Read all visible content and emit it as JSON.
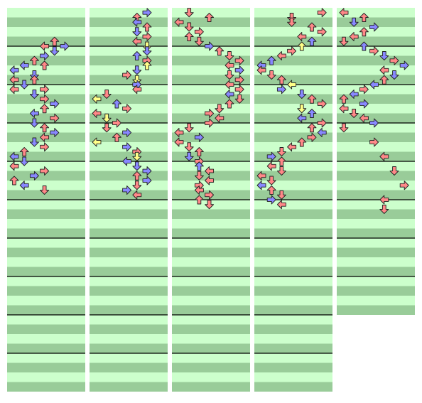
{
  "chart": {
    "columns": [
      {
        "name": "column-1",
        "measures": 10,
        "notes": [
          [
            3,
            4,
            "u",
            "r"
          ],
          [
            3.5,
            5,
            "r",
            "b"
          ],
          [
            3.5,
            3,
            "l",
            "r"
          ],
          [
            4,
            4,
            "d",
            "b"
          ],
          [
            4.5,
            3,
            "r",
            "b"
          ],
          [
            5,
            2,
            "u",
            "r"
          ],
          [
            5.5,
            1,
            "l",
            "b"
          ],
          [
            5.5,
            3,
            "u",
            "r"
          ],
          [
            6,
            0,
            "l",
            "b"
          ],
          [
            6.5,
            2,
            "d",
            "b"
          ],
          [
            7,
            0,
            "l",
            "r"
          ],
          [
            7,
            2,
            "u",
            "r"
          ],
          [
            7.5,
            1,
            "d",
            "b"
          ],
          [
            8,
            0,
            "l",
            "r"
          ],
          [
            8,
            3,
            "r",
            "r"
          ],
          [
            8.5,
            2,
            "d",
            "b"
          ],
          [
            9,
            3,
            "r",
            "r"
          ],
          [
            9.5,
            4,
            "r",
            "b"
          ],
          [
            10,
            3,
            "u",
            "r"
          ],
          [
            10.5,
            2,
            "l",
            "b"
          ],
          [
            11,
            4,
            "r",
            "r"
          ],
          [
            11.5,
            2,
            "d",
            "b"
          ],
          [
            12,
            3,
            "u",
            "r"
          ],
          [
            12.5,
            4,
            "r",
            "b"
          ],
          [
            13,
            3,
            "l",
            "r"
          ],
          [
            13.5,
            2,
            "d",
            "b"
          ],
          [
            14,
            3,
            "r",
            "r"
          ],
          [
            14.5,
            1,
            "u",
            "r"
          ],
          [
            15,
            0,
            "l",
            "b"
          ],
          [
            15.5,
            1,
            "d",
            "b"
          ],
          [
            16,
            0,
            "l",
            "r"
          ],
          [
            16.5,
            3,
            "r",
            "r"
          ],
          [
            17,
            2,
            "r",
            "b"
          ],
          [
            17.5,
            0,
            "u",
            "r"
          ],
          [
            18,
            1,
            "l",
            "b"
          ],
          [
            18.5,
            3,
            "d",
            "r"
          ]
        ]
      },
      {
        "name": "column-2",
        "measures": 10,
        "notes": [
          [
            0,
            5,
            "r",
            "b"
          ],
          [
            0.5,
            4,
            "u",
            "r"
          ],
          [
            1,
            4,
            "l",
            "b"
          ],
          [
            1.5,
            5,
            "u",
            "r"
          ],
          [
            2,
            4,
            "d",
            "b"
          ],
          [
            2.5,
            5,
            "r",
            "r"
          ],
          [
            3,
            4,
            "l",
            "r"
          ],
          [
            3.5,
            5,
            "d",
            "y"
          ],
          [
            4,
            5,
            "d",
            "b"
          ],
          [
            4.5,
            4,
            "u",
            "b"
          ],
          [
            5,
            5,
            "r",
            "r"
          ],
          [
            5.5,
            5,
            "u",
            "y"
          ],
          [
            6,
            4,
            "d",
            "b"
          ],
          [
            6.5,
            3,
            "r",
            "r"
          ],
          [
            7,
            4,
            "d",
            "y"
          ],
          [
            7.5,
            4,
            "r",
            "b"
          ],
          [
            8,
            4,
            "l",
            "r"
          ],
          [
            8.5,
            1,
            "d",
            "r"
          ],
          [
            9,
            0,
            "l",
            "y"
          ],
          [
            9.5,
            2,
            "u",
            "b"
          ],
          [
            10,
            3,
            "r",
            "r"
          ],
          [
            10.5,
            0,
            "l",
            "r"
          ],
          [
            11,
            1,
            "d",
            "y"
          ],
          [
            11.5,
            2,
            "r",
            "r"
          ],
          [
            12,
            1,
            "d",
            "r"
          ],
          [
            12.5,
            3,
            "r",
            "b"
          ],
          [
            13,
            2,
            "u",
            "r"
          ],
          [
            13.5,
            0,
            "l",
            "y"
          ],
          [
            14,
            3,
            "r",
            "b"
          ],
          [
            14.5,
            4,
            "r",
            "r"
          ],
          [
            15,
            4,
            "d",
            "y"
          ],
          [
            15.5,
            3,
            "l",
            "b"
          ],
          [
            16,
            4,
            "d",
            "b"
          ],
          [
            16.5,
            5,
            "r",
            "b"
          ],
          [
            17,
            4,
            "u",
            "r"
          ],
          [
            17.5,
            5,
            "r",
            "b"
          ],
          [
            18,
            4,
            "d",
            "r"
          ],
          [
            18.5,
            3,
            "r",
            "b"
          ],
          [
            19,
            4,
            "l",
            "r"
          ]
        ]
      },
      {
        "name": "column-3",
        "measures": 10,
        "notes": [
          [
            0,
            1,
            "d",
            "r"
          ],
          [
            0.5,
            3,
            "u",
            "r"
          ],
          [
            1,
            0,
            "l",
            "r"
          ],
          [
            1.5,
            1,
            "d",
            "r"
          ],
          [
            2,
            2,
            "r",
            "r"
          ],
          [
            2.5,
            1,
            "u",
            "r"
          ],
          [
            3,
            2,
            "d",
            "r"
          ],
          [
            3.5,
            3,
            "r",
            "b"
          ],
          [
            4,
            4,
            "u",
            "r"
          ],
          [
            4.5,
            5,
            "d",
            "r"
          ],
          [
            5,
            6,
            "r",
            "r"
          ],
          [
            5.5,
            5,
            "l",
            "r"
          ],
          [
            6,
            6,
            "r",
            "b"
          ],
          [
            6.5,
            5,
            "d",
            "r"
          ],
          [
            7,
            6,
            "r",
            "r"
          ],
          [
            7.5,
            5,
            "l",
            "r"
          ],
          [
            8,
            6,
            "r",
            "r"
          ],
          [
            8.5,
            5,
            "l",
            "b"
          ],
          [
            9,
            6,
            "d",
            "r"
          ],
          [
            9.5,
            5,
            "u",
            "r"
          ],
          [
            10,
            4,
            "d",
            "r"
          ],
          [
            10.5,
            3,
            "r",
            "r"
          ],
          [
            11,
            4,
            "l",
            "r"
          ],
          [
            11.5,
            3,
            "r",
            "r"
          ],
          [
            12,
            1,
            "d",
            "r"
          ],
          [
            12.5,
            0,
            "l",
            "r"
          ],
          [
            13,
            2,
            "r",
            "b"
          ],
          [
            13.5,
            0,
            "l",
            "r"
          ],
          [
            14,
            1,
            "d",
            "r"
          ],
          [
            14.5,
            2,
            "u",
            "r"
          ],
          [
            15,
            1,
            "d",
            "b"
          ],
          [
            15.5,
            2,
            "r",
            "r"
          ],
          [
            16,
            2,
            "u",
            "b"
          ],
          [
            16.5,
            3,
            "l",
            "r"
          ],
          [
            17,
            2,
            "d",
            "r"
          ],
          [
            17.5,
            3,
            "l",
            "r"
          ],
          [
            18,
            2,
            "r",
            "r"
          ],
          [
            18.5,
            2,
            "l",
            "r"
          ],
          [
            19,
            3,
            "r",
            "r"
          ],
          [
            19.5,
            2,
            "u",
            "r"
          ],
          [
            20,
            3,
            "d",
            "r"
          ]
        ]
      },
      {
        "name": "column-4",
        "measures": 10,
        "notes": [
          [
            0,
            6,
            "r",
            "r"
          ],
          [
            0.5,
            3,
            "d",
            "r"
          ],
          [
            1,
            3,
            "d",
            "r"
          ],
          [
            1.5,
            5,
            "u",
            "r"
          ],
          [
            2,
            6,
            "r",
            "r"
          ],
          [
            2.5,
            4,
            "l",
            "r"
          ],
          [
            3,
            5,
            "u",
            "b"
          ],
          [
            3.5,
            4,
            "u",
            "y"
          ],
          [
            4,
            3,
            "r",
            "r"
          ],
          [
            4.5,
            2,
            "l",
            "r"
          ],
          [
            5,
            1,
            "u",
            "b"
          ],
          [
            5.5,
            0,
            "l",
            "b"
          ],
          [
            6,
            0,
            "l",
            "r"
          ],
          [
            6.5,
            1,
            "d",
            "r"
          ],
          [
            7,
            2,
            "u",
            "r"
          ],
          [
            7.5,
            3,
            "l",
            "y"
          ],
          [
            8,
            2,
            "r",
            "b"
          ],
          [
            8.5,
            4,
            "d",
            "b"
          ],
          [
            9,
            5,
            "u",
            "r"
          ],
          [
            9.5,
            6,
            "r",
            "r"
          ],
          [
            10,
            4,
            "d",
            "y"
          ],
          [
            10.5,
            5,
            "u",
            "b"
          ],
          [
            11,
            4,
            "l",
            "b"
          ],
          [
            11.5,
            6,
            "r",
            "r"
          ],
          [
            12,
            5,
            "u",
            "r"
          ],
          [
            12.5,
            6,
            "l",
            "b"
          ],
          [
            13,
            5,
            "r",
            "r"
          ],
          [
            13.5,
            4,
            "u",
            "r"
          ],
          [
            14,
            3,
            "l",
            "r"
          ],
          [
            14.5,
            2,
            "d",
            "r"
          ],
          [
            15,
            1,
            "r",
            "b"
          ],
          [
            15.5,
            2,
            "u",
            "r"
          ],
          [
            16,
            1,
            "l",
            "r"
          ],
          [
            16.5,
            2,
            "d",
            "r"
          ],
          [
            17,
            0,
            "l",
            "r"
          ],
          [
            17.5,
            1,
            "d",
            "r"
          ],
          [
            18,
            0,
            "l",
            "b"
          ],
          [
            18.5,
            1,
            "u",
            "r"
          ],
          [
            19,
            2,
            "d",
            "r"
          ],
          [
            19.5,
            1,
            "r",
            "b"
          ],
          [
            20,
            2,
            "l",
            "r"
          ]
        ]
      },
      {
        "name": "column-5",
        "measures": 8,
        "notes": [
          [
            0,
            0,
            "l",
            "r"
          ],
          [
            0.5,
            2,
            "u",
            "r"
          ],
          [
            1,
            1,
            "d",
            "b"
          ],
          [
            1.5,
            3,
            "r",
            "b"
          ],
          [
            2,
            2,
            "u",
            "r"
          ],
          [
            2.5,
            1,
            "l",
            "r"
          ],
          [
            3,
            0,
            "d",
            "r"
          ],
          [
            3.5,
            2,
            "u",
            "b"
          ],
          [
            4,
            3,
            "r",
            "r"
          ],
          [
            4.5,
            4,
            "d",
            "b"
          ],
          [
            5,
            5,
            "r",
            "r"
          ],
          [
            5.5,
            6,
            "r",
            "b"
          ],
          [
            6,
            4,
            "l",
            "r"
          ],
          [
            6.5,
            5,
            "d",
            "b"
          ],
          [
            7,
            4,
            "u",
            "r"
          ],
          [
            7.5,
            3,
            "l",
            "b"
          ],
          [
            8,
            2,
            "r",
            "r"
          ],
          [
            8.5,
            1,
            "l",
            "b"
          ],
          [
            9,
            0,
            "u",
            "r"
          ],
          [
            9.5,
            2,
            "r",
            "b"
          ],
          [
            10,
            0,
            "l",
            "r"
          ],
          [
            10.5,
            1,
            "d",
            "r"
          ],
          [
            11,
            2,
            "l",
            "r"
          ],
          [
            11.5,
            3,
            "r",
            "b"
          ],
          [
            12,
            0,
            "d",
            "r"
          ],
          [
            13.5,
            3,
            "r",
            "r"
          ],
          [
            15,
            4,
            "l",
            "r"
          ],
          [
            16.5,
            5,
            "d",
            "r"
          ],
          [
            18,
            6,
            "r",
            "r"
          ],
          [
            19.5,
            4,
            "l",
            "r"
          ],
          [
            20.5,
            4,
            "d",
            "r"
          ]
        ]
      }
    ]
  },
  "colors": {
    "row_light": "#ccffcc",
    "row_dark": "#99cc99",
    "measure_line": "#000000",
    "arrow_red": "#ff8888",
    "arrow_blue": "#8888ff",
    "arrow_yellow": "#ffff88",
    "arrow_outline": "#222222"
  },
  "icons": {
    "u": "arrow-up-icon",
    "d": "arrow-down-icon",
    "l": "arrow-left-icon",
    "r": "arrow-right-icon"
  }
}
